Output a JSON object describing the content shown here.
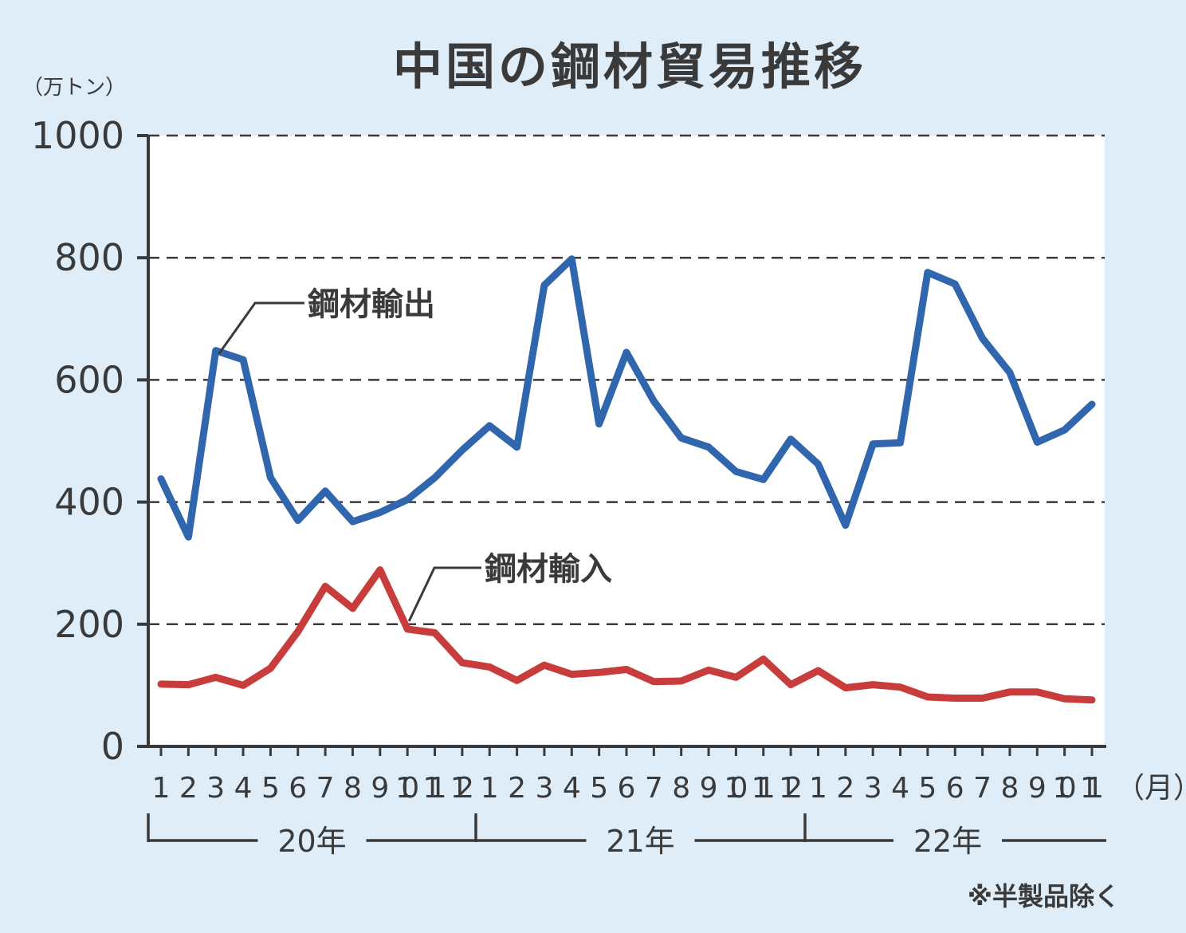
{
  "title": "中国の鋼材貿易推移",
  "y_unit": "（万トン）",
  "x_unit": "（月）",
  "note": "※半製品除く",
  "colors": {
    "export": "#2f66ad",
    "import": "#c83c3c",
    "axis": "#3a3a3a",
    "plot_bg": "#ffffff",
    "page_bg": "#dfedf9"
  },
  "chart_data": {
    "type": "line",
    "title": "中国の鋼材貿易推移",
    "ylabel": "（万トン）",
    "xlabel": "（月）",
    "ylim": [
      0,
      1000
    ],
    "yticks": [
      "0",
      "200",
      "400",
      "600",
      "800",
      "1000"
    ],
    "grid": "horizontal-dashed",
    "months": [
      "1",
      "2",
      "3",
      "4",
      "5",
      "6",
      "7",
      "8",
      "9",
      "10",
      "11",
      "12",
      "1",
      "2",
      "3",
      "4",
      "5",
      "6",
      "7",
      "8",
      "9",
      "10",
      "11",
      "12",
      "1",
      "2",
      "3",
      "4",
      "5",
      "6",
      "7",
      "8",
      "9",
      "10",
      "11"
    ],
    "years": [
      "20年",
      "21年",
      "22年"
    ],
    "series": [
      {
        "name": "鋼材輸出",
        "values": [
          438,
          343,
          648,
          633,
          440,
          370,
          418,
          368,
          383,
          404,
          440,
          485,
          525,
          490,
          755,
          798,
          528,
          645,
          565,
          505,
          490,
          450,
          437,
          503,
          462,
          362,
          495,
          497,
          776,
          757,
          668,
          612,
          498,
          518,
          560
        ]
      },
      {
        "name": "鋼材輸入",
        "values": [
          102,
          101,
          113,
          100,
          128,
          188,
          262,
          226,
          289,
          192,
          186,
          137,
          130,
          108,
          133,
          118,
          121,
          126,
          106,
          107,
          125,
          113,
          143,
          101,
          124,
          96,
          101,
          97,
          81,
          79,
          79,
          89,
          89,
          78,
          76
        ]
      }
    ]
  }
}
